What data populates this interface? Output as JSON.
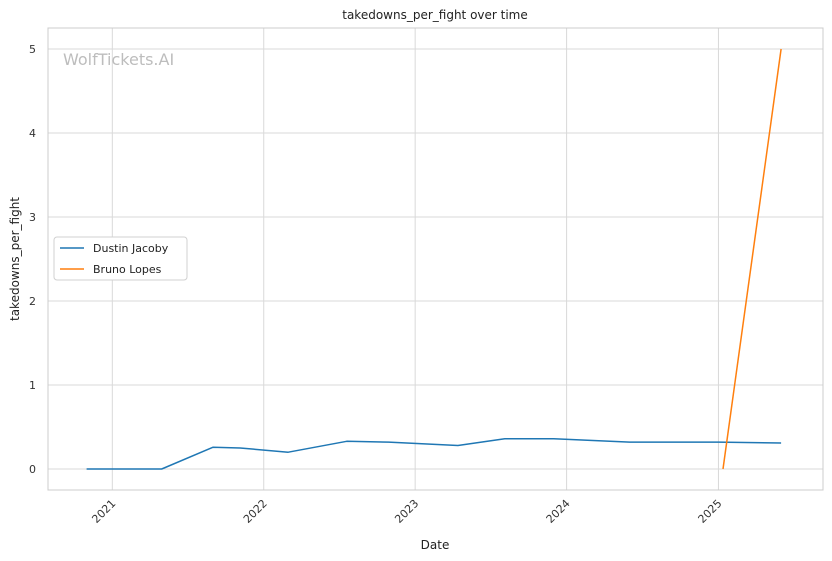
{
  "watermark": "WolfTickets.AI",
  "chart_data": {
    "type": "line",
    "title": "takedowns_per_fight over time",
    "xlabel": "Date",
    "ylabel": "takedowns_per_fight",
    "x_ticks": [
      "2021",
      "2022",
      "2023",
      "2024",
      "2025"
    ],
    "y_ticks": [
      0,
      1,
      2,
      3,
      4,
      5
    ],
    "ylim": [
      -0.25,
      5.25
    ],
    "xlim": [
      "2020-07-30",
      "2025-09-10"
    ],
    "grid": true,
    "legend_position": "center-left",
    "series": [
      {
        "name": "Dustin Jacoby",
        "color": "#1f77b4",
        "points": [
          {
            "x": "2020-10-31",
            "y": 0.0
          },
          {
            "x": "2021-01-23",
            "y": 0.0
          },
          {
            "x": "2021-04-30",
            "y": 0.0
          },
          {
            "x": "2021-09-01",
            "y": 0.26
          },
          {
            "x": "2021-11-05",
            "y": 0.25
          },
          {
            "x": "2022-03-01",
            "y": 0.2
          },
          {
            "x": "2022-07-20",
            "y": 0.33
          },
          {
            "x": "2022-10-29",
            "y": 0.32
          },
          {
            "x": "2023-04-14",
            "y": 0.28
          },
          {
            "x": "2023-08-05",
            "y": 0.36
          },
          {
            "x": "2023-12-01",
            "y": 0.36
          },
          {
            "x": "2024-06-01",
            "y": 0.32
          },
          {
            "x": "2025-01-01",
            "y": 0.32
          },
          {
            "x": "2025-06-01",
            "y": 0.31
          }
        ]
      },
      {
        "name": "Bruno Lopes",
        "color": "#ff7f0e",
        "points": [
          {
            "x": "2025-01-12",
            "y": 0.0
          },
          {
            "x": "2025-06-01",
            "y": 5.0
          }
        ]
      }
    ]
  }
}
